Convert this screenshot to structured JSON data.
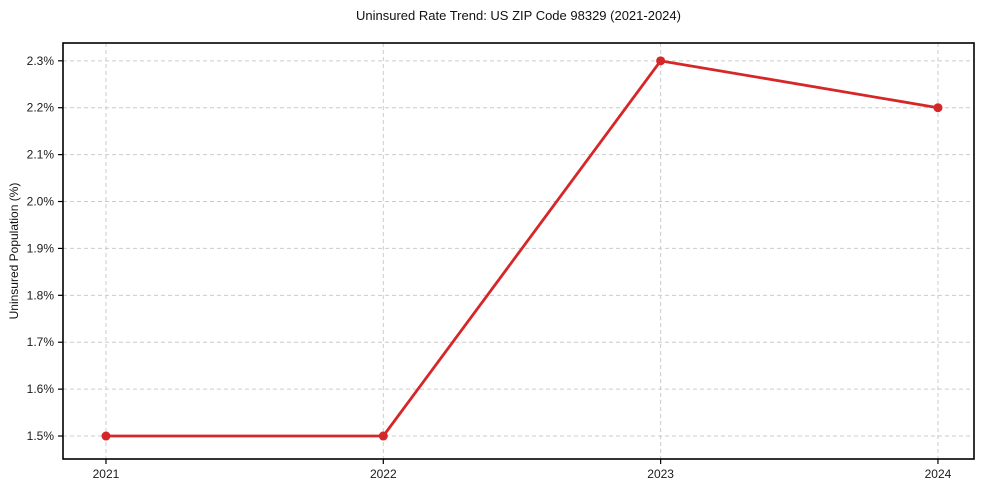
{
  "header": {
    "title": "Uninsured Rate Trend: US ZIP Code 98329 (2021-2024)"
  },
  "chart_data": {
    "type": "line",
    "title": "Uninsured Rate Trend: US ZIP Code 98329 (2021-2024)",
    "xlabel": "",
    "ylabel": "Uninsured Population (%)",
    "x": [
      2021,
      2022,
      2023,
      2024
    ],
    "xtick_labels": [
      "2021",
      "2022",
      "2023",
      "2024"
    ],
    "series": [
      {
        "name": "Uninsured Population (%)",
        "values": [
          1.5,
          1.5,
          2.3,
          2.2
        ],
        "color": "#d62728"
      }
    ],
    "yticks": [
      1.5,
      1.6,
      1.7,
      1.8,
      1.9,
      2.0,
      2.1,
      2.2,
      2.3
    ],
    "ytick_labels": [
      "1.5%",
      "1.6%",
      "1.7%",
      "1.8%",
      "1.9%",
      "2.0%",
      "2.1%",
      "2.2%",
      "2.3%"
    ],
    "xlim": [
      2020.845,
      2024.13
    ],
    "ylim": [
      1.451,
      2.338
    ],
    "grid": true,
    "legend": false,
    "grid_color": "#cccccc",
    "axis_color": "#000000",
    "text_color": "#1a1a1a",
    "background": "#ffffff"
  }
}
